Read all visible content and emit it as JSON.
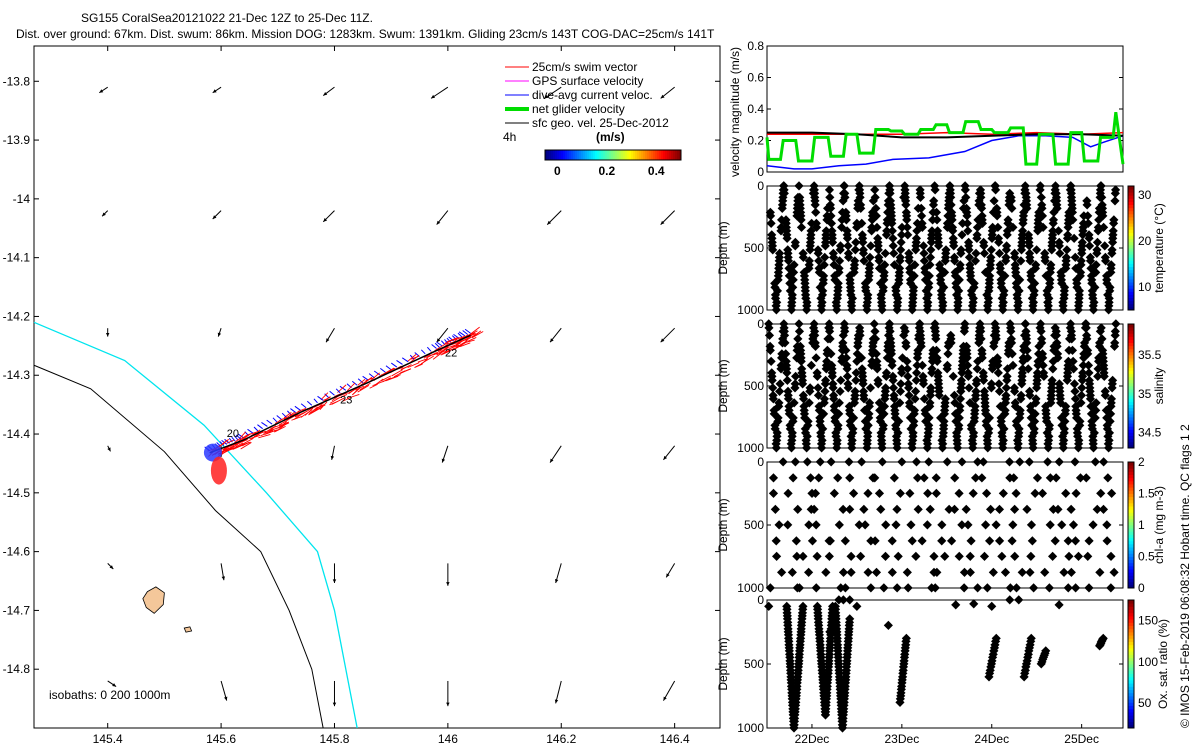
{
  "header": {
    "line1": "SG155 CoralSea20121022 21-Dec 12Z to 25-Dec 11Z.",
    "line2": "Dist. over ground: 67km. Dist. swum: 86km. Mission DOG: 1283km. Swum: 1391km. Gliding 23cm/s 143T COG-DAC=25cm/s 141T"
  },
  "side_label": "© IMOS 15-Feb-2019 06:08:32 Hobart time. QC flags 1  2",
  "colors": {
    "swim": "#ff0000",
    "gps": "#ff00ff",
    "dac": "#0000ff",
    "net": "#00dd00",
    "geo": "#000000",
    "isobath_200": "#000000",
    "isobath_1000": "#00e5ee",
    "island": "#f4c79a"
  },
  "chart_data": [
    {
      "type": "map",
      "id": "track-map",
      "xlim": [
        145.27,
        146.48
      ],
      "ylim": [
        -14.9,
        -13.74
      ],
      "x_ticks": [
        145.4,
        145.6,
        145.8,
        146,
        146.2,
        146.4
      ],
      "x_tick_labels": [
        "145.4",
        "145.6",
        "145.8",
        "146",
        "146.2",
        "146.4"
      ],
      "y_ticks": [
        -13.8,
        -13.9,
        -14,
        -14.1,
        -14.2,
        -14.3,
        -14.4,
        -14.5,
        -14.6,
        -14.7,
        -14.8
      ],
      "y_tick_labels": [
        "-13.8",
        "-13.9",
        "-14",
        "-14.1",
        "-14.2",
        "-14.3",
        "-14.4",
        "-14.5",
        "-14.6",
        "-14.7",
        "-14.8"
      ],
      "legend": {
        "entries": [
          {
            "label": "25cm/s swim vector",
            "color": "#ff0000",
            "width": 1
          },
          {
            "label": "GPS surface velocity",
            "color": "#ff00ff",
            "width": 1
          },
          {
            "label": "dive-avg current veloc.",
            "color": "#0000ff",
            "width": 1
          },
          {
            "label": "net glider velocity",
            "color": "#00dd00",
            "width": 4
          },
          {
            "label": "sfc geo. vel. 25-Dec-2012",
            "color": "#000000",
            "width": 1
          }
        ],
        "interval_label": "4h",
        "colorbar_unit": "(m/s)",
        "colorbar_ticks": [
          0,
          0.2,
          0.4
        ],
        "colorbar_tick_labels": [
          "0",
          "0.2",
          "0.4"
        ],
        "colorbar_range": [
          -0.05,
          0.5
        ]
      },
      "isobath_label": "isobaths: 0   200  1000m",
      "day_labels": [
        {
          "text": "22",
          "lon": 145.995,
          "lat": -14.268
        },
        {
          "text": "23",
          "lon": 145.81,
          "lat": -14.348
        },
        {
          "text": "20",
          "lon": 145.61,
          "lat": -14.405
        }
      ],
      "track": {
        "start": {
          "lon": 146.04,
          "lat": -14.232
        },
        "waypoints": [
          [
            146.04,
            -14.232
          ],
          [
            145.98,
            -14.258
          ],
          [
            145.86,
            -14.312
          ],
          [
            145.74,
            -14.363
          ],
          [
            145.64,
            -14.41
          ],
          [
            145.58,
            -14.432
          ]
        ],
        "end": {
          "lon": 145.575,
          "lat": -14.435
        }
      },
      "isobath_200": [
        [
          145.27,
          -14.283
        ],
        [
          145.37,
          -14.323
        ],
        [
          145.5,
          -14.43
        ],
        [
          145.59,
          -14.53
        ],
        [
          145.67,
          -14.6
        ],
        [
          145.72,
          -14.7
        ],
        [
          145.76,
          -14.8
        ],
        [
          145.78,
          -14.9
        ]
      ],
      "isobath_1000": [
        [
          145.27,
          -14.21
        ],
        [
          145.43,
          -14.275
        ],
        [
          145.57,
          -14.385
        ],
        [
          145.68,
          -14.5
        ],
        [
          145.77,
          -14.6
        ],
        [
          145.8,
          -14.7
        ],
        [
          145.83,
          -14.85
        ],
        [
          145.84,
          -14.9
        ]
      ],
      "geo_vectors": {
        "lons": [
          145.4,
          145.6,
          145.8,
          146.0,
          146.2,
          146.4
        ],
        "lats": [
          -13.81,
          -14.02,
          -14.22,
          -14.42,
          -14.62,
          -14.82
        ],
        "u": [
          [
            -0.03,
            -0.03,
            -0.04,
            -0.06,
            -0.06,
            -0.05
          ],
          [
            -0.02,
            -0.03,
            -0.04,
            -0.04,
            -0.05,
            -0.05
          ],
          [
            0.0,
            -0.01,
            -0.03,
            -0.04,
            -0.04,
            -0.05
          ],
          [
            0.01,
            0.0,
            -0.01,
            -0.02,
            -0.04,
            -0.04
          ],
          [
            0.02,
            0.01,
            0.0,
            0.0,
            -0.02,
            -0.03
          ],
          [
            0.03,
            0.02,
            0.0,
            0.0,
            -0.02,
            -0.04
          ]
        ],
        "v": [
          [
            -0.02,
            -0.02,
            -0.03,
            -0.04,
            -0.04,
            -0.04
          ],
          [
            -0.02,
            -0.03,
            -0.04,
            -0.05,
            -0.05,
            -0.05
          ],
          [
            -0.03,
            -0.03,
            -0.05,
            -0.05,
            -0.05,
            -0.05
          ],
          [
            -0.02,
            -0.04,
            -0.05,
            -0.06,
            -0.06,
            -0.05
          ],
          [
            -0.02,
            -0.06,
            -0.07,
            -0.08,
            -0.07,
            -0.05
          ],
          [
            -0.02,
            -0.07,
            -0.09,
            -0.09,
            -0.08,
            -0.07
          ]
        ]
      },
      "islands": [
        {
          "name": "reef-large",
          "points": [
            [
              145.47,
              -14.668
            ],
            [
              145.485,
              -14.66
            ],
            [
              145.5,
              -14.67
            ],
            [
              145.498,
              -14.69
            ],
            [
              145.482,
              -14.705
            ],
            [
              145.468,
              -14.695
            ],
            [
              145.462,
              -14.68
            ]
          ]
        },
        {
          "name": "reef-small",
          "points": [
            [
              145.535,
              -14.73
            ],
            [
              145.545,
              -14.728
            ],
            [
              145.548,
              -14.735
            ],
            [
              145.538,
              -14.737
            ]
          ]
        }
      ]
    },
    {
      "type": "line",
      "id": "velocity-panel",
      "ylabel": "velocity magnitude (m/s)",
      "ylim": [
        0,
        0.8
      ],
      "y_ticks": [
        0,
        0.2,
        0.4,
        0.6,
        0.8
      ],
      "y_tick_labels": [
        "0",
        "0.2",
        "0.4",
        "0.6",
        "0.8"
      ],
      "xlim": [
        21.5,
        25.46
      ],
      "series": [
        {
          "color": "#ff0000",
          "width": 1.5,
          "x": [
            21.5,
            22.0,
            22.5,
            23.0,
            23.5,
            24.0,
            24.5,
            25.0,
            25.46
          ],
          "y": [
            0.24,
            0.24,
            0.24,
            0.24,
            0.25,
            0.24,
            0.25,
            0.24,
            0.25
          ]
        },
        {
          "color": "#0000ff",
          "width": 1.5,
          "x": [
            21.5,
            21.8,
            22.0,
            22.3,
            22.6,
            22.9,
            23.3,
            23.7,
            24.0,
            24.3,
            24.6,
            24.9,
            25.1,
            25.25,
            25.46
          ],
          "y": [
            0.04,
            0.02,
            0.02,
            0.04,
            0.05,
            0.08,
            0.09,
            0.13,
            0.2,
            0.23,
            0.23,
            0.22,
            0.16,
            0.19,
            0.23
          ]
        },
        {
          "color": "#000000",
          "width": 2,
          "x": [
            21.5,
            22.0,
            22.5,
            23.0,
            23.5,
            24.0,
            24.5,
            25.0,
            25.46
          ],
          "y": [
            0.25,
            0.25,
            0.24,
            0.22,
            0.22,
            0.23,
            0.24,
            0.24,
            0.23
          ]
        },
        {
          "color": "#00dd00",
          "width": 3,
          "x": [
            21.5,
            21.52,
            21.65,
            21.68,
            21.82,
            21.85,
            22.0,
            22.03,
            22.18,
            22.21,
            22.35,
            22.38,
            22.5,
            22.53,
            22.68,
            22.71,
            22.85,
            22.88,
            23.0,
            23.03,
            23.18,
            23.21,
            23.35,
            23.38,
            23.5,
            23.53,
            23.68,
            23.71,
            23.85,
            23.88,
            24.0,
            24.03,
            24.18,
            24.21,
            24.35,
            24.38,
            24.5,
            24.53,
            24.68,
            24.71,
            24.85,
            24.88,
            25.0,
            25.03,
            25.18,
            25.21,
            25.35,
            25.38,
            25.46
          ],
          "y": [
            0.22,
            0.08,
            0.08,
            0.2,
            0.2,
            0.07,
            0.07,
            0.22,
            0.22,
            0.1,
            0.1,
            0.24,
            0.24,
            0.12,
            0.12,
            0.27,
            0.27,
            0.26,
            0.26,
            0.24,
            0.24,
            0.27,
            0.27,
            0.3,
            0.3,
            0.25,
            0.25,
            0.32,
            0.32,
            0.27,
            0.27,
            0.25,
            0.25,
            0.28,
            0.28,
            0.05,
            0.05,
            0.24,
            0.24,
            0.05,
            0.05,
            0.25,
            0.25,
            0.07,
            0.07,
            0.22,
            0.22,
            0.38,
            0.05
          ]
        }
      ]
    },
    {
      "type": "scatter",
      "id": "temperature-panel",
      "ylabel": "Depth (m)",
      "clabel": "temperature (°C)",
      "clim": [
        5,
        32
      ],
      "c_ticks": [
        10,
        20,
        30
      ],
      "c_tick_labels": [
        "10",
        "20",
        "30"
      ],
      "ylim": [
        1000,
        0
      ],
      "y_ticks": [
        0,
        500,
        1000
      ],
      "y_tick_labels": [
        "0",
        "500",
        "1000"
      ],
      "dives": {
        "start": 21.52,
        "step": 0.168,
        "count": 23,
        "max_depth": 1000,
        "surface_value": 30,
        "deep_value": 5
      },
      "pattern": "full-depth v profiles, warm near surface"
    },
    {
      "type": "scatter",
      "id": "salinity-panel",
      "ylabel": "Depth (m)",
      "clabel": "salinity",
      "clim": [
        34.3,
        35.9
      ],
      "c_ticks": [
        34.5,
        35,
        35.5
      ],
      "c_tick_labels": [
        "34.5",
        "35",
        "35.5"
      ],
      "ylim": [
        1000,
        0
      ],
      "y_ticks": [
        0,
        500,
        1000
      ],
      "y_tick_labels": [
        "0",
        "500",
        "1000"
      ],
      "dives": {
        "start": 21.52,
        "step": 0.168,
        "count": 23,
        "max_depth": 1000,
        "surface_value": 35.7,
        "deep_value": 34.4
      },
      "pattern": "full-depth v profiles, salinity max near 150 m"
    },
    {
      "type": "scatter",
      "id": "chla-panel",
      "ylabel": "Depth (m)",
      "clabel": "chl-a (mg m-3)",
      "clim": [
        0,
        2
      ],
      "c_ticks": [
        0,
        0.5,
        1,
        1.5,
        2
      ],
      "c_tick_labels": [
        "0",
        "0.5",
        "1",
        "1.5",
        "2"
      ],
      "ylim": [
        1000,
        0
      ],
      "y_ticks": [
        0,
        500,
        1000
      ],
      "y_tick_labels": [
        "0",
        "500",
        "1000"
      ],
      "dives": {
        "start": 21.52,
        "step": 0.168,
        "count": 23,
        "max_depth": 1000,
        "surface_value": 0.5,
        "deep_value": 0
      },
      "pattern": "sparse samples, mostly near zero"
    },
    {
      "type": "scatter",
      "id": "oxygen-panel",
      "ylabel": "Depth (m)",
      "clabel": "Ox. sat. ratio (%)",
      "clim": [
        20,
        175
      ],
      "c_ticks": [
        50,
        100,
        150
      ],
      "c_tick_labels": [
        "50",
        "100",
        "150"
      ],
      "ylim": [
        1000,
        0
      ],
      "y_ticks": [
        0,
        500,
        1000
      ],
      "y_tick_labels": [
        "0",
        "500",
        "1000"
      ],
      "x_ticks": [
        22,
        23,
        24,
        25
      ],
      "x_tick_labels": [
        "22Dec",
        "23Dec",
        "24Dec",
        "25Dec"
      ],
      "segments": [
        {
          "x0": 21.72,
          "x1": 21.8,
          "d0": 50,
          "d1": 1000
        },
        {
          "x0": 21.8,
          "x1": 21.9,
          "d0": 1000,
          "d1": 50
        },
        {
          "x0": 22.06,
          "x1": 22.15,
          "d0": 50,
          "d1": 900
        },
        {
          "x0": 22.15,
          "x1": 22.23,
          "d0": 900,
          "d1": 50
        },
        {
          "x0": 22.26,
          "x1": 22.34,
          "d0": 50,
          "d1": 1000
        },
        {
          "x0": 22.34,
          "x1": 22.42,
          "d0": 1000,
          "d1": 150
        },
        {
          "x0": 22.98,
          "x1": 23.05,
          "d0": 800,
          "d1": 300
        },
        {
          "x0": 23.97,
          "x1": 24.05,
          "d0": 600,
          "d1": 300
        },
        {
          "x0": 24.36,
          "x1": 24.44,
          "d0": 600,
          "d1": 300
        },
        {
          "x0": 24.55,
          "x1": 24.6,
          "d0": 500,
          "d1": 400
        },
        {
          "x0": 25.2,
          "x1": 25.24,
          "d0": 360,
          "d1": 300
        }
      ],
      "dots": [
        [
          21.52,
          50
        ],
        [
          22.2,
          250
        ],
        [
          22.3,
          0
        ],
        [
          22.35,
          0
        ],
        [
          22.42,
          0
        ],
        [
          22.5,
          50
        ],
        [
          22.85,
          200
        ],
        [
          23.6,
          40
        ],
        [
          23.8,
          30
        ],
        [
          24.0,
          50
        ],
        [
          24.2,
          0
        ],
        [
          24.3,
          0
        ],
        [
          24.75,
          40
        ]
      ],
      "dot_value": 40
    }
  ]
}
